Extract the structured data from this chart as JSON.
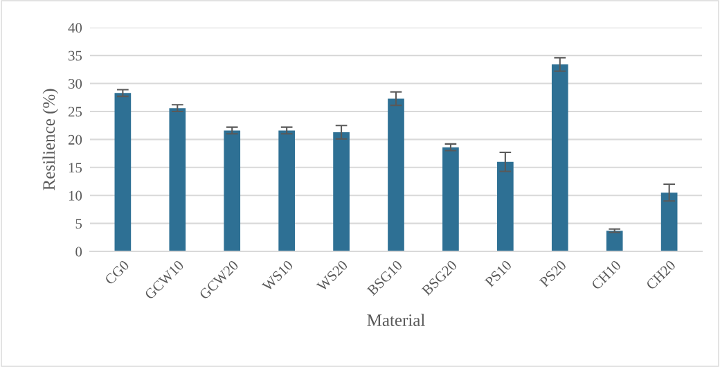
{
  "chart_data": {
    "type": "bar",
    "xlabel": "Material",
    "ylabel": "Resilience (%)",
    "categories": [
      "CG0",
      "GCW10",
      "GCW20",
      "WS10",
      "WS20",
      "BSG10",
      "BSG20",
      "PS10",
      "PS20",
      "CH10",
      "CH20"
    ],
    "values": [
      28.3,
      25.6,
      21.6,
      21.6,
      21.3,
      27.3,
      18.6,
      16.0,
      33.4,
      3.7,
      10.5
    ],
    "errors": [
      0.6,
      0.6,
      0.6,
      0.6,
      1.2,
      1.2,
      0.6,
      1.7,
      1.2,
      0.3,
      1.5
    ],
    "color": "#2e7094",
    "ylim": [
      0,
      40
    ],
    "yticks": [
      0,
      5,
      10,
      15,
      20,
      25,
      30,
      35,
      40
    ],
    "grid": "y"
  }
}
